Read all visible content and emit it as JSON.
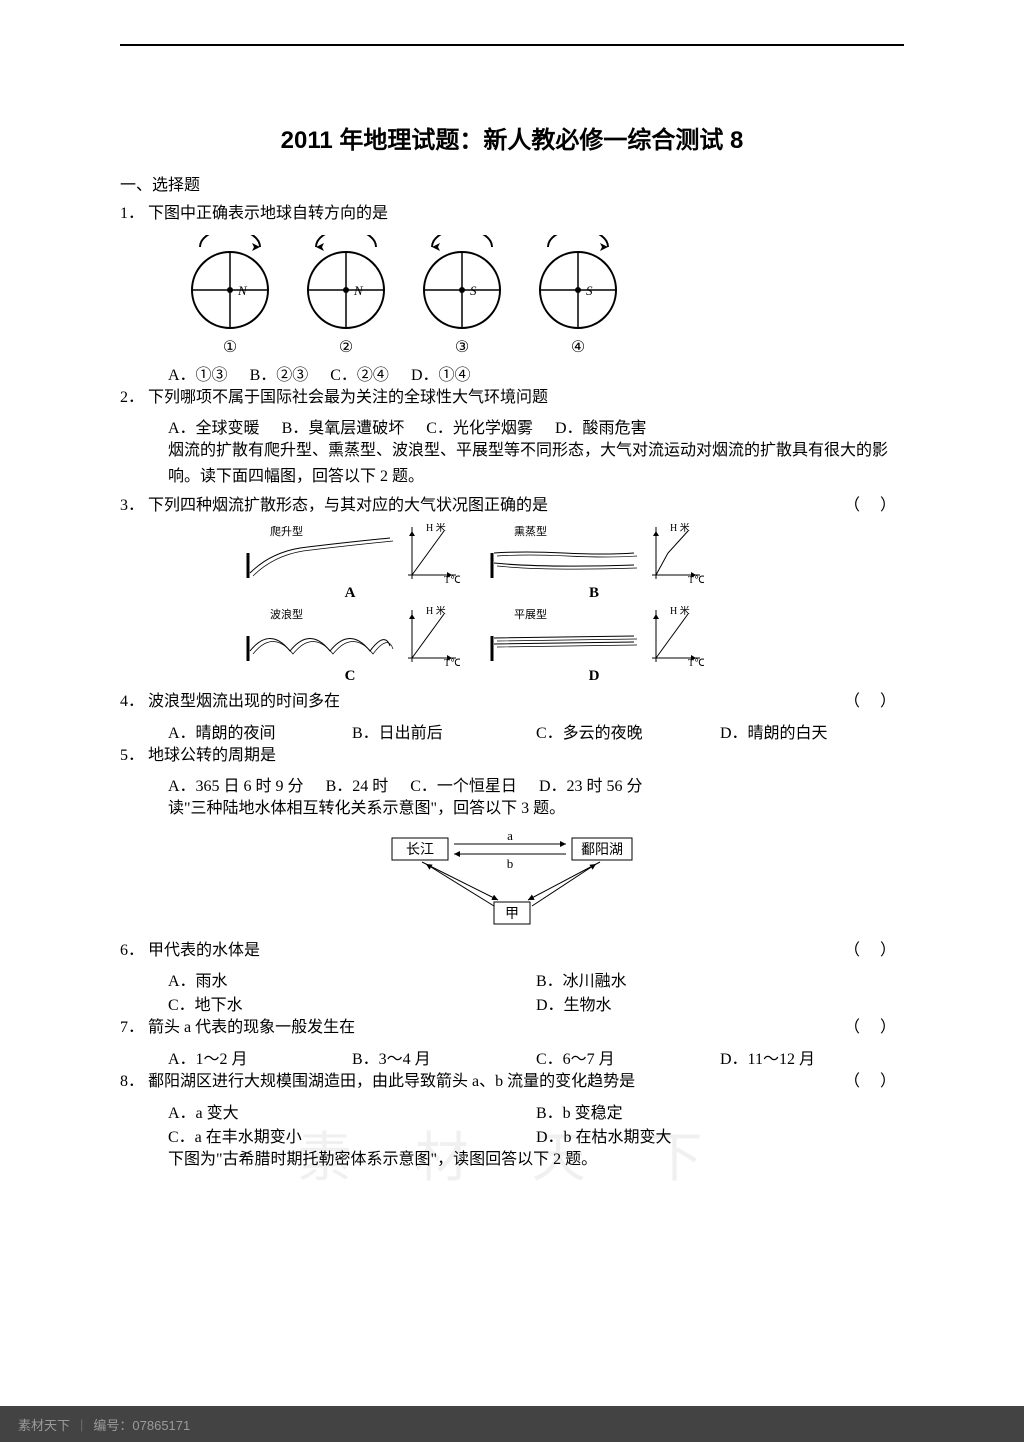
{
  "page": {
    "title": "2011 年地理试题：新人教必修一综合测试 8",
    "section1": "一、选择题",
    "watermark": "素 材 天 下"
  },
  "q1": {
    "num": "1．",
    "text": "下图中正确表示地球自转方向的是",
    "globes": [
      {
        "letter": "N",
        "label": "①",
        "arrow": "cw"
      },
      {
        "letter": "N",
        "label": "②",
        "arrow": "ccw"
      },
      {
        "letter": "S",
        "label": "③",
        "arrow": "ccw"
      },
      {
        "letter": "S",
        "label": "④",
        "arrow": "cw"
      }
    ],
    "opts": {
      "a": "A．①③",
      "b": "B．②③",
      "c": "C．②④",
      "d": "D．①④"
    }
  },
  "q2": {
    "num": "2．",
    "text": "下列哪项不属于国际社会最为关注的全球性大气环境问题",
    "opts": {
      "a": "A．全球变暖",
      "b": "B．臭氧层遭破坏",
      "c": "C．光化学烟雾",
      "d": "D．酸雨危害"
    },
    "intro": "烟流的扩散有爬升型、熏蒸型、波浪型、平展型等不同形态，大气对流运动对烟流的扩散具有很大的影响。读下面四幅图，回答以下 2 题。"
  },
  "q3": {
    "num": "3．",
    "text": "下列四种烟流扩散形态，与其对应的大气状况图正确的是",
    "paren": "（    ）",
    "cells": [
      {
        "name": "爬升型",
        "label": "A"
      },
      {
        "name": "熏蒸型",
        "label": "B"
      },
      {
        "name": "波浪型",
        "label": "C"
      },
      {
        "name": "平展型",
        "label": "D"
      }
    ],
    "axis_y": "H 米",
    "axis_x": "T℃"
  },
  "q4": {
    "num": "4．",
    "text": "波浪型烟流出现的时间多在",
    "paren": "（    ）",
    "opts": {
      "a": "A．晴朗的夜间",
      "b": "B．日出前后",
      "c": "C．多云的夜晚",
      "d": "D．晴朗的白天"
    }
  },
  "q5": {
    "num": "5．",
    "text": "地球公转的周期是",
    "opts": {
      "a": "A．365 日 6 时 9 分",
      "b": "B．24 时",
      "c": "C．一个恒星日",
      "d": "D．23 时 56 分"
    },
    "intro": "读\"三种陆地水体相互转化关系示意图\"，回答以下 3 题。",
    "flow": {
      "left": "长江",
      "right": "鄱阳湖",
      "bottom": "甲",
      "a": "a",
      "b": "b"
    }
  },
  "q6": {
    "num": "6．",
    "text": "甲代表的水体是",
    "paren": "（    ）",
    "opts": {
      "a": "A．雨水",
      "b": "B．冰川融水",
      "c": "C．地下水",
      "d": "D．生物水"
    }
  },
  "q7": {
    "num": "7．",
    "text": "箭头 a 代表的现象一般发生在",
    "paren": "（    ）",
    "opts": {
      "a": "A．1～2 月",
      "b": "B．3～4 月",
      "c": "C．6～7 月",
      "d": "D．11～12 月"
    }
  },
  "q8": {
    "num": "8．",
    "text": "鄱阳湖区进行大规模围湖造田，由此导致箭头 a、b 流量的变化趋势是",
    "paren": "（    ）",
    "opts": {
      "a": "A．a 变大",
      "b": "B．b 变稳定",
      "c": "C．a 在丰水期变小",
      "d": "D．b 在枯水期变大"
    },
    "outro": "下图为\"古希腊时期托勒密体系示意图\"，读图回答以下 2 题。"
  },
  "footer": {
    "left": "素材天下",
    "right": "编号：07865171"
  },
  "colors": {
    "text": "#000000",
    "bg": "#ffffff",
    "footer_bg": "#434343",
    "footer_text": "#9a9a9a",
    "watermark": "rgba(0,0,0,0.06)"
  }
}
